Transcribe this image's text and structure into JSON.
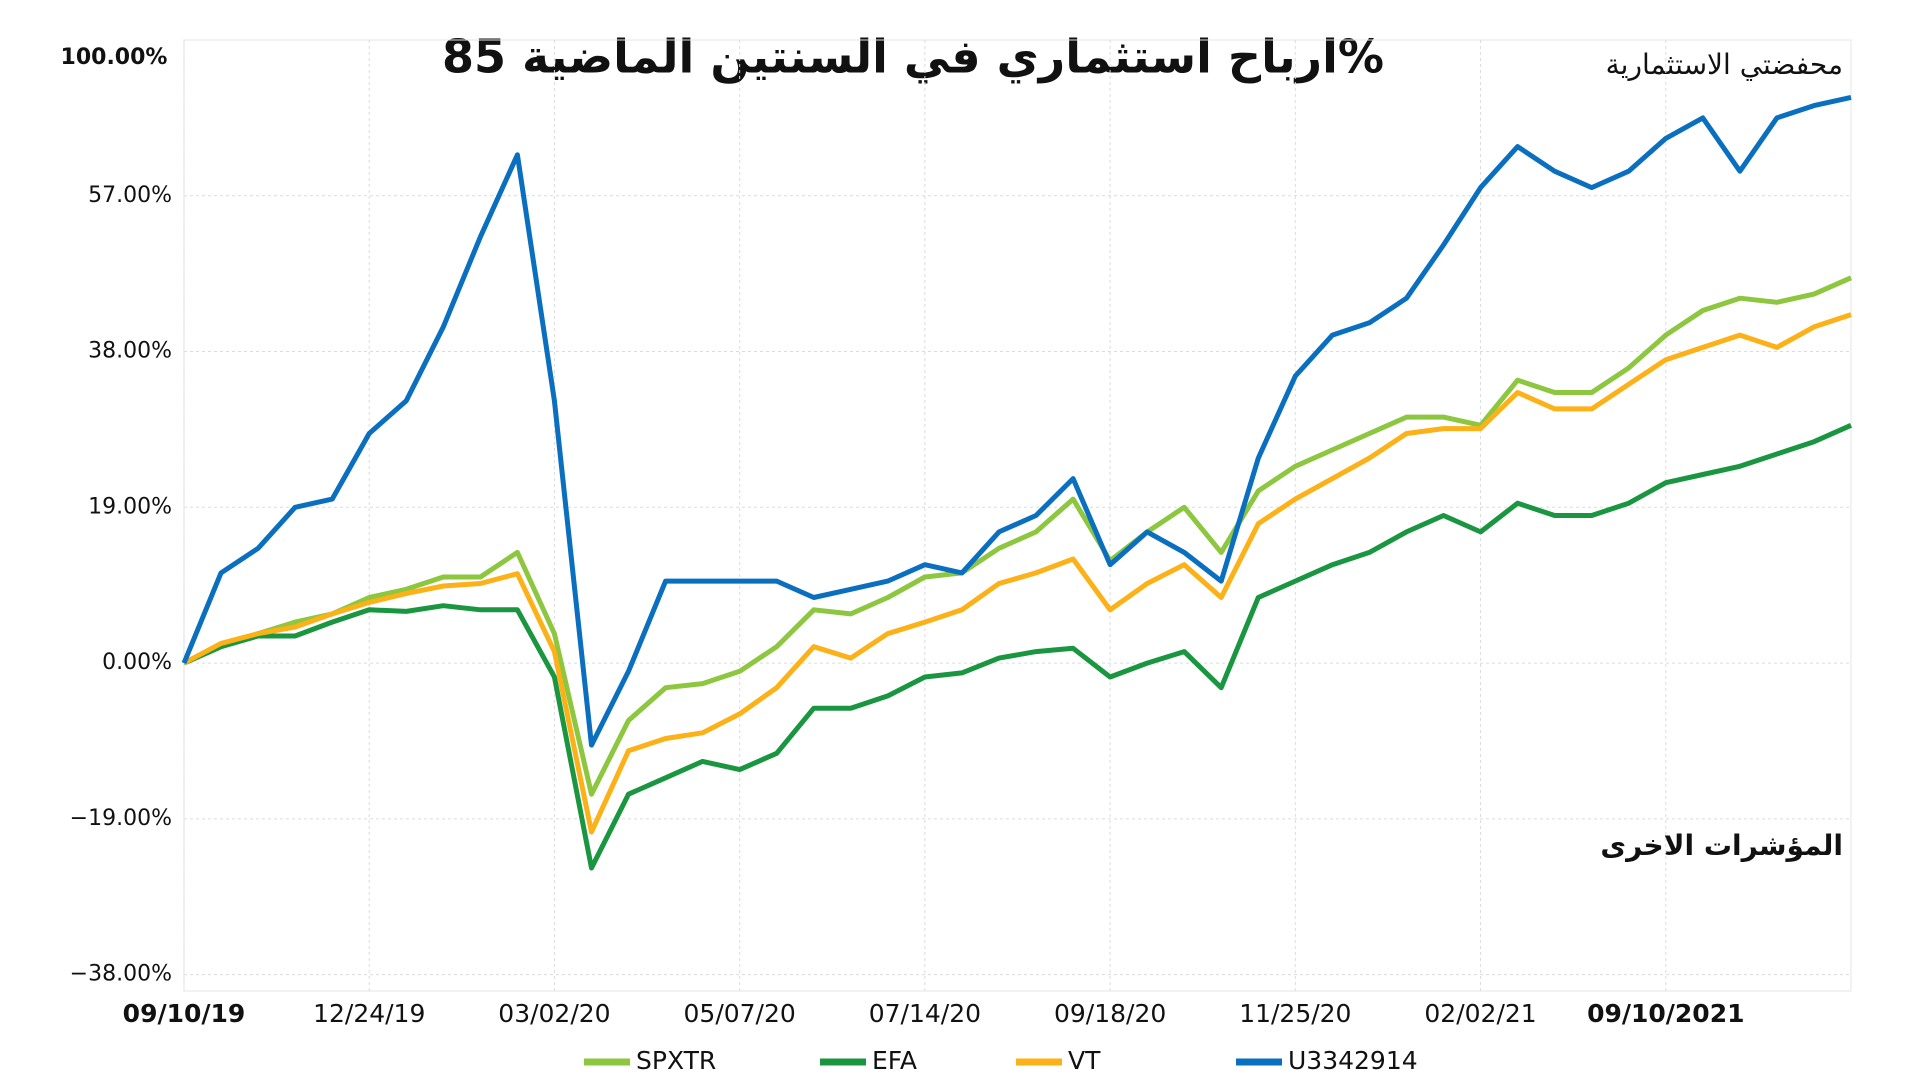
{
  "chart_data": {
    "type": "line",
    "title": "ارباح استثماري  في السنتين  الماضية 85%",
    "annotations": [
      "100.00%",
      "محفضتي الاستثمارية",
      "المؤشرات الاخرى"
    ],
    "categories": [
      "09/10/19",
      null,
      null,
      null,
      null,
      "12/24/19",
      null,
      null,
      null,
      null,
      "03/02/20",
      null,
      null,
      null,
      null,
      "05/07/20",
      null,
      null,
      null,
      null,
      "07/14/20",
      null,
      null,
      null,
      null,
      "09/18/20",
      null,
      null,
      null,
      null,
      "11/25/20",
      null,
      null,
      null,
      null,
      "02/02/21",
      null,
      null,
      null,
      null,
      "09/10/2021",
      null,
      null,
      null,
      null,
      null
    ],
    "series": [
      {
        "name": "SPXTR",
        "color": "#8dc63f",
        "values": [
          0,
          2,
          3.6,
          5,
          6,
          8,
          9,
          10.5,
          10.5,
          13.5,
          3.6,
          -16,
          -7,
          -3,
          -2.5,
          -1,
          2,
          6.5,
          6,
          8,
          10.5,
          11,
          14,
          16,
          20,
          12.5,
          16,
          19,
          13.5,
          21,
          24,
          26,
          28,
          30,
          30,
          29,
          34.5,
          33,
          33,
          36,
          40,
          43,
          44.5,
          44,
          45,
          47
        ]
      },
      {
        "name": "EFA",
        "color": "#1a9641",
        "values": [
          0,
          2,
          3.3,
          3.3,
          5,
          6.5,
          6.3,
          7,
          6.5,
          6.5,
          -1.7,
          -25,
          -16,
          -14,
          -12,
          -13,
          -11,
          -5.5,
          -5.5,
          -4,
          -1.7,
          -1.2,
          0.6,
          1.4,
          1.8,
          -1.7,
          0,
          1.4,
          -3,
          8,
          10,
          12,
          13.5,
          16,
          18,
          16,
          19.5,
          18,
          18,
          19.5,
          22,
          23,
          24,
          25.5,
          27,
          29
        ]
      },
      {
        "name": "VT",
        "color": "#fbb117",
        "values": [
          0,
          2.4,
          3.6,
          4.4,
          6,
          7.4,
          8.5,
          9.4,
          9.7,
          10.9,
          1.4,
          -20.6,
          -10.7,
          -9.2,
          -8.5,
          -6.2,
          -3,
          2,
          0.6,
          3.6,
          5,
          6.5,
          9.7,
          11,
          12.7,
          6.5,
          9.7,
          12,
          8,
          17,
          20,
          22.5,
          25,
          28,
          28.6,
          28.6,
          33,
          31,
          31,
          34,
          37,
          38.5,
          40,
          38.5,
          41,
          42.5
        ]
      },
      {
        "name": "U3342914",
        "color": "#0a6fbf",
        "values": [
          0,
          11,
          14,
          19,
          20,
          28,
          32,
          41,
          52,
          62,
          32,
          -10,
          -1,
          10,
          10,
          10,
          10,
          8,
          9,
          10,
          12,
          11,
          16,
          18,
          22.5,
          12,
          16,
          13.5,
          10,
          25,
          35,
          40,
          41.5,
          44.5,
          51,
          58,
          63,
          60,
          58,
          60,
          64,
          66.5,
          60,
          66.5,
          68,
          69
        ]
      }
    ],
    "ylim": [
      -40,
      76
    ],
    "yticks": [
      {
        "value": -38,
        "label": "−38.00%"
      },
      {
        "value": -19,
        "label": "−19.00%"
      },
      {
        "value": 0,
        "label": "0.00%"
      },
      {
        "value": 19,
        "label": "19.00%"
      },
      {
        "value": 38,
        "label": "38.00%"
      },
      {
        "value": 57,
        "label": "57.00%"
      }
    ],
    "grid": true
  }
}
